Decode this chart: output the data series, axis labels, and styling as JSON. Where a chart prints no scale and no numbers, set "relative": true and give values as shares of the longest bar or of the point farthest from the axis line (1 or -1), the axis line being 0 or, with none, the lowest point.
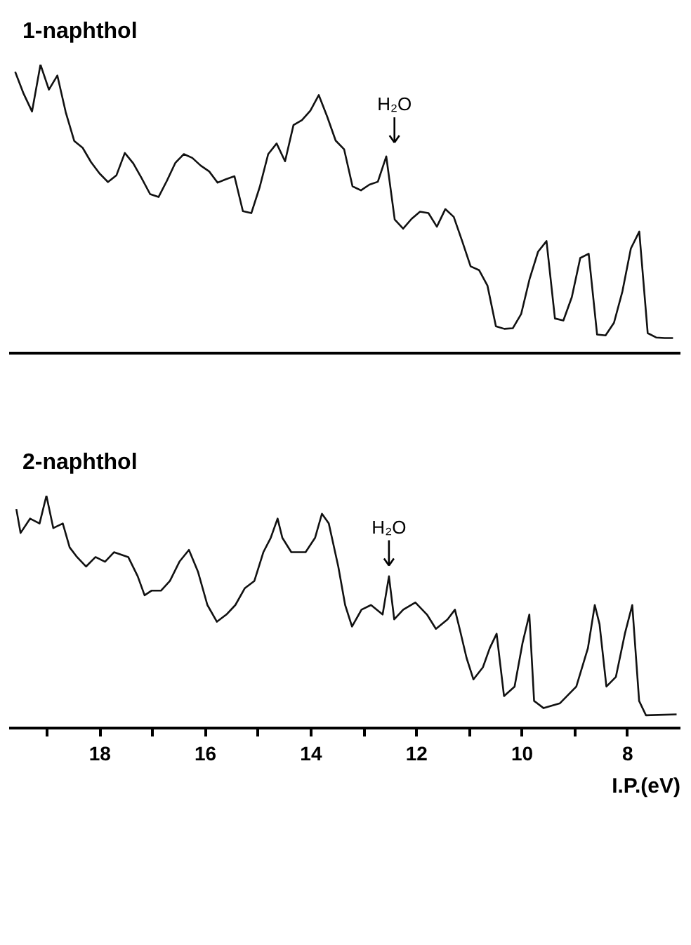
{
  "chart_data": [
    {
      "type": "line",
      "title": "1-naphthol",
      "relative": true,
      "tick_labels": false,
      "categories": [
        null,
        null,
        null,
        null,
        null,
        null,
        null,
        null,
        null,
        null,
        null,
        null,
        null,
        null,
        null,
        null,
        null,
        null,
        null,
        null,
        null,
        null,
        null,
        null,
        null,
        null,
        null,
        null,
        null,
        null,
        null,
        null,
        null,
        null,
        null,
        null,
        null,
        null,
        null,
        null,
        null,
        null,
        null,
        null,
        null,
        null,
        null,
        null,
        null,
        null,
        null,
        null,
        null,
        null,
        null,
        null,
        null,
        null,
        null,
        null,
        null,
        null,
        null,
        null,
        null,
        null,
        null,
        null,
        null,
        null,
        null,
        null,
        null,
        null,
        null,
        null,
        null,
        null,
        null
      ],
      "annotations": [
        "H₂O"
      ],
      "series": [
        {
          "color": "#111111",
          "values": [
            0.975,
            0.899,
            0.837,
            1.0,
            0.913,
            0.962,
            0.834,
            0.735,
            0.711,
            0.661,
            0.622,
            0.592,
            0.615,
            0.693,
            0.657,
            0.605,
            0.55,
            0.54,
            0.597,
            0.659,
            0.689,
            0.676,
            0.649,
            0.629,
            0.59,
            0.602,
            0.612,
            0.491,
            0.484,
            0.575,
            0.689,
            0.726,
            0.664,
            0.79,
            0.807,
            0.84,
            0.894,
            0.819,
            0.736,
            0.706,
            0.577,
            0.563,
            0.583,
            0.593,
            0.681,
            0.462,
            0.43,
            0.464,
            0.489,
            0.484,
            0.437,
            0.498,
            0.471,
            0.387,
            0.299,
            0.286,
            0.232,
            0.091,
            0.082,
            0.084,
            0.134,
            0.256,
            0.35,
            0.387,
            0.118,
            0.111,
            0.192,
            0.328,
            0.343,
            0.062,
            0.059,
            0.103,
            0.212,
            0.361,
            0.42,
            0.067,
            0.052,
            0.05,
            0.05
          ]
        }
      ]
    },
    {
      "type": "line",
      "title": "2-naphthol",
      "xlabel": "I.P.(eV)",
      "relative": true,
      "tick_labels": "x",
      "xlim": [
        19.72,
        7.0
      ],
      "xticks": [
        {
          "value": 19,
          "label": null
        },
        18,
        {
          "value": 17,
          "label": null
        },
        16,
        {
          "value": 15,
          "label": null
        },
        14,
        {
          "value": 13,
          "label": null
        },
        12,
        {
          "value": 11,
          "label": null
        },
        10,
        {
          "value": 9,
          "label": null
        },
        8
      ],
      "annotations": [
        {
          "text": "H₂O",
          "x": 12.51,
          "y": 0.65
        }
      ],
      "series": [
        {
          "color": "#111111",
          "x": [
            19.57,
            19.49,
            19.31,
            19.13,
            19.0,
            18.87,
            18.69,
            18.56,
            18.42,
            18.25,
            18.07,
            17.89,
            17.72,
            17.45,
            17.27,
            17.14,
            17.01,
            16.83,
            16.66,
            16.48,
            16.3,
            16.13,
            15.95,
            15.77,
            15.59,
            15.42,
            15.24,
            15.06,
            14.89,
            14.75,
            14.62,
            14.53,
            14.36,
            14.09,
            13.91,
            13.78,
            13.65,
            13.47,
            13.34,
            13.21,
            13.03,
            12.85,
            12.63,
            12.51,
            12.41,
            12.24,
            12.01,
            11.79,
            11.62,
            11.4,
            11.26,
            11.17,
            11.04,
            10.91,
            10.73,
            10.6,
            10.47,
            10.33,
            10.13,
            9.98,
            9.85,
            9.76,
            9.58,
            9.27,
            8.96,
            8.74,
            8.61,
            8.52,
            8.39,
            8.21,
            8.04,
            7.9,
            7.77,
            7.64,
            7.06
          ],
          "values": [
            0.942,
            0.839,
            0.901,
            0.88,
            1.0,
            0.86,
            0.88,
            0.777,
            0.735,
            0.694,
            0.735,
            0.715,
            0.756,
            0.735,
            0.652,
            0.57,
            0.59,
            0.59,
            0.632,
            0.715,
            0.766,
            0.673,
            0.528,
            0.456,
            0.487,
            0.528,
            0.601,
            0.632,
            0.756,
            0.818,
            0.901,
            0.818,
            0.756,
            0.756,
            0.818,
            0.922,
            0.88,
            0.694,
            0.528,
            0.435,
            0.508,
            0.528,
            0.487,
            0.652,
            0.466,
            0.508,
            0.539,
            0.487,
            0.425,
            0.466,
            0.508,
            0.425,
            0.3,
            0.207,
            0.259,
            0.342,
            0.404,
            0.135,
            0.176,
            0.363,
            0.487,
            0.114,
            0.083,
            0.104,
            0.176,
            0.342,
            0.528,
            0.445,
            0.176,
            0.218,
            0.404,
            0.528,
            0.114,
            0.052,
            0.056
          ]
        }
      ]
    }
  ]
}
